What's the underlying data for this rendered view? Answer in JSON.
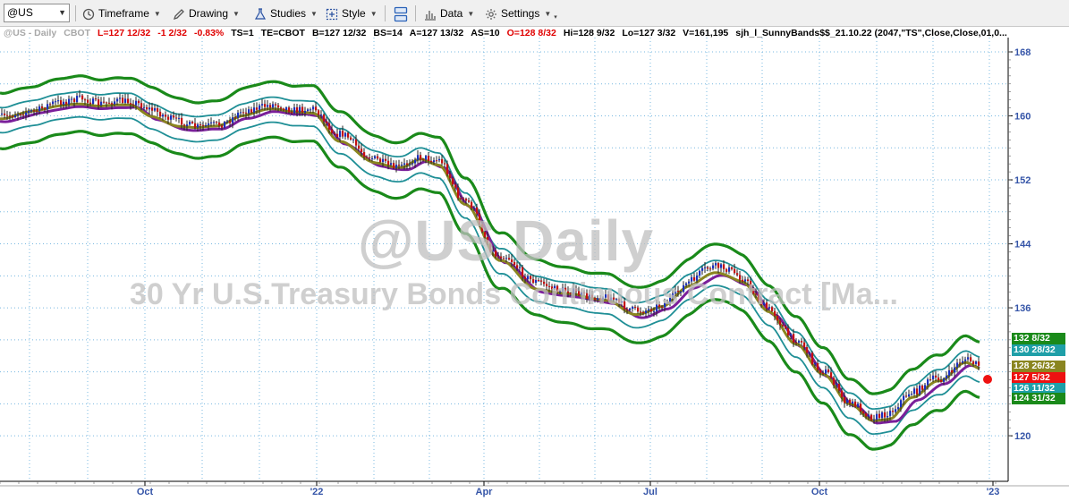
{
  "toolbar": {
    "symbol": "@US",
    "buttons": [
      {
        "id": "timeframe",
        "label": "Timeframe",
        "icon": "clock-icon"
      },
      {
        "id": "drawing",
        "label": "Drawing",
        "icon": "pencil-icon"
      },
      {
        "id": "studies",
        "label": "Studies",
        "icon": "flask-icon"
      },
      {
        "id": "style",
        "label": "Style",
        "icon": "style-icon"
      },
      {
        "id": "layout",
        "label": "",
        "icon": "layout-icon"
      },
      {
        "id": "data",
        "label": "Data",
        "icon": "bar-chart-icon"
      },
      {
        "id": "settings",
        "label": "Settings",
        "icon": "gear-icon"
      }
    ]
  },
  "info": {
    "symbol": "@US - Daily",
    "exchange": "CBOT",
    "last": "L=127 12/32",
    "change": "-1 2/32",
    "pct": "-0.83%",
    "ts": "TS=1",
    "te": "TE=CBOT",
    "bid": "B=127 12/32",
    "bs": "BS=14",
    "ask": "A=127 13/32",
    "as": "AS=10",
    "open": "O=128 8/32",
    "high": "Hi=128 9/32",
    "low": "Lo=127 3/32",
    "volume": "V=161,195",
    "study": "sjh_l_SunnyBands$$_21.10.22 (2047,\"TS\",Close,Close,01,0..."
  },
  "watermark": {
    "title": "@US Daily",
    "description": "30 Yr U.S.Treasury Bonds Continuous Contract [Ma..."
  },
  "axis": {
    "y_labels": [
      "168",
      "160",
      "152",
      "144",
      "136",
      "120"
    ],
    "x_labels": [
      "Oct",
      "'22",
      "Apr",
      "Jul",
      "Oct",
      "'23"
    ]
  },
  "price_tags": [
    {
      "label": "132 8/32",
      "color": "#1a8a1a"
    },
    {
      "label": "130 28/32",
      "color": "#1f9fa8"
    },
    {
      "label": "128 26/32",
      "color": "#8a8520"
    },
    {
      "label": "127 5/32",
      "color": "#ee1111"
    },
    {
      "label": "126 11/32",
      "color": "#1f9fa8"
    },
    {
      "label": "124 31/32",
      "color": "#1a8a1a"
    }
  ],
  "colors": {
    "outer_band": "#1a8a1a",
    "inner_band": "#1f8f96",
    "mid_olive": "#8a8520",
    "mid_purple": "#7a1f9a",
    "bar_up": "#1a2fbf",
    "bar_down": "#c41010",
    "grid": "#78b8e0",
    "last_dot": "#ee1111"
  }
}
